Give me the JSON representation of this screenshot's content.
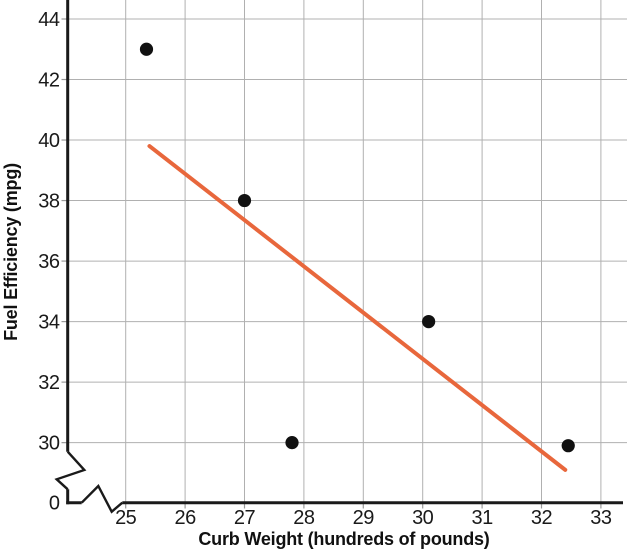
{
  "chart_data": {
    "type": "scatter",
    "title": "",
    "xlabel": "Curb Weight (hundreds of pounds)",
    "ylabel": "Fuel Efficiency (mpg)",
    "x_ticks": [
      25,
      26,
      27,
      28,
      29,
      30,
      31,
      32,
      33
    ],
    "y_ticks": [
      30,
      32,
      34,
      36,
      38,
      40,
      42,
      44
    ],
    "origin_label": "0",
    "x_range": [
      25,
      33
    ],
    "y_range": [
      30,
      44
    ],
    "axis_break_x": true,
    "axis_break_y": true,
    "grid": true,
    "legend": false,
    "points": [
      {
        "x": 25.35,
        "y": 43.0
      },
      {
        "x": 27.0,
        "y": 38.0
      },
      {
        "x": 27.8,
        "y": 30.0
      },
      {
        "x": 30.1,
        "y": 34.0
      },
      {
        "x": 32.45,
        "y": 29.9
      }
    ],
    "trend_line": {
      "x1": 25.4,
      "y1": 39.8,
      "x2": 32.4,
      "y2": 29.1
    },
    "colors": {
      "point": "#111111",
      "trend": "#E8673C",
      "grid": "#b0b0b0",
      "tick": "#999999",
      "axis": "#1a1a1a",
      "background": "#ffffff"
    }
  }
}
